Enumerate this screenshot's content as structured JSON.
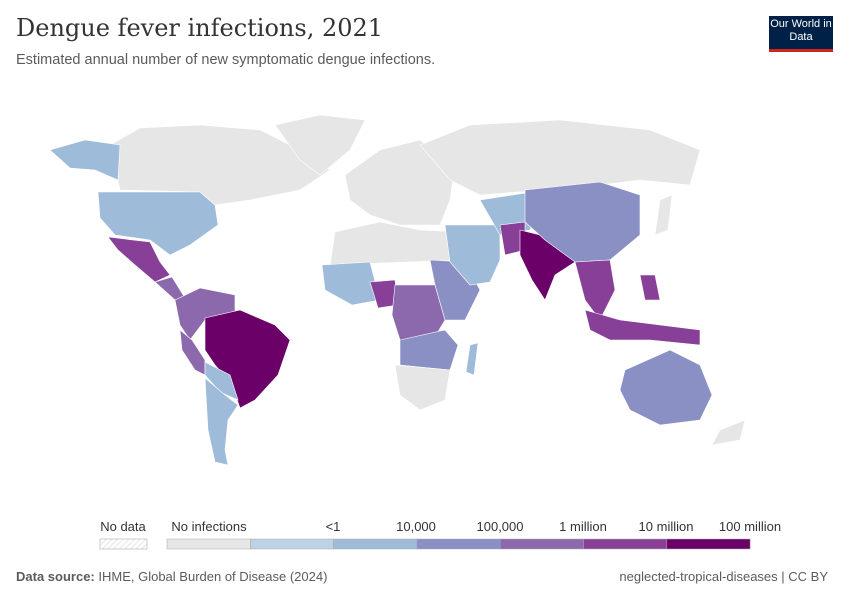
{
  "header": {
    "title": "Dengue fever infections, 2021",
    "subtitle": "Estimated annual number of new symptomatic dengue infections.",
    "logo": "Our World in Data"
  },
  "legend": {
    "no_data": "No data",
    "no_data_color": "#ffffff",
    "bins": [
      {
        "label": "No infections",
        "color": "#e6e6e6"
      },
      {
        "label": "",
        "color": "#bdd2e6"
      },
      {
        "label": "<1",
        "color": "#9ebbda"
      },
      {
        "label": "10,000",
        "color": "#8a90c4"
      },
      {
        "label": "100,000",
        "color": "#8c69ad"
      },
      {
        "label": "1 million",
        "color": "#873f98"
      },
      {
        "label": "10 million",
        "color": "#6b0068"
      }
    ],
    "end_label": "100 million"
  },
  "map_data": {
    "bin_of_region": {
      "Canada": "No infections",
      "Greenland": "No infections",
      "Europe": "No infections",
      "Russia": "No infections",
      "North Africa": "No infections",
      "Southern Africa": "No infections",
      "Alaska/United States": "<1 – 10,000",
      "United States": "<1 – 10,000",
      "Mexico": "1 million",
      "Central America": "100,000",
      "South America (other)": "100,000",
      "Argentina": "<1",
      "Brazil": "10 million+",
      "West Africa": "<1",
      "Nigeria": "1 million",
      "Central Africa": "100,000",
      "East Africa": "10,000",
      "Middle East": "<1",
      "China": "10,000",
      "India": "10 million+",
      "Southeast Asia": "1 million",
      "Indonesia": "1 million",
      "Philippines": "1 million",
      "Australia": "10,000",
      "Madagascar": "<1"
    }
  },
  "footer": {
    "source_label": "Data source:",
    "source": "IHME, Global Burden of Disease (2024)",
    "right": "neglected-tropical-diseases | CC BY"
  }
}
